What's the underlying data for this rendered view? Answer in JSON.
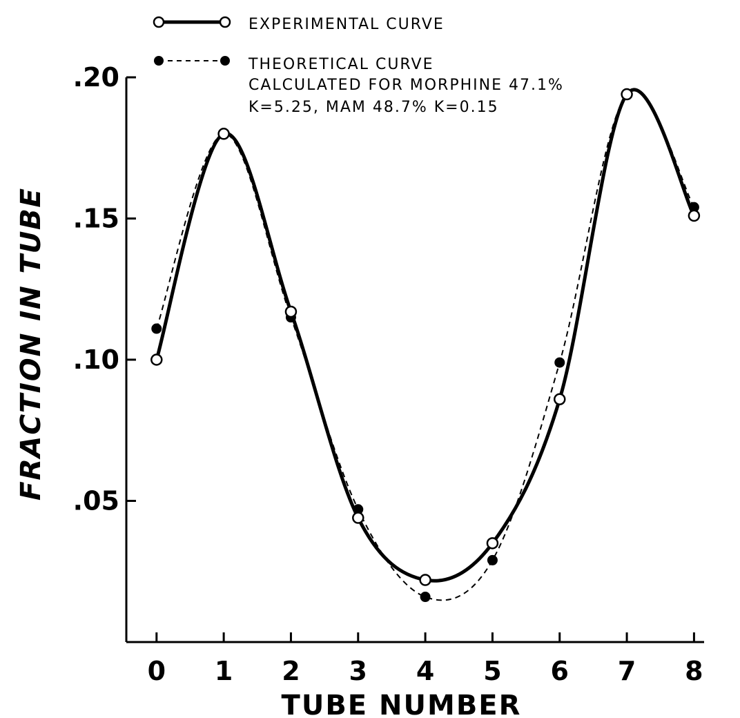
{
  "chart_data": {
    "type": "line",
    "xlabel": "TUBE NUMBER",
    "ylabel": "FRACTION IN TUBE",
    "x": [
      0,
      1,
      2,
      3,
      4,
      5,
      6,
      7,
      8
    ],
    "xlim": [
      -0.45,
      8.15
    ],
    "ylim": [
      0,
      0.2
    ],
    "x_ticks": [
      "0",
      "1",
      "2",
      "3",
      "4",
      "5",
      "6",
      "7",
      "8"
    ],
    "y_ticks": [
      {
        "value": 0.05,
        "label": ".05"
      },
      {
        "value": 0.1,
        "label": ".10"
      },
      {
        "value": 0.15,
        "label": ".15"
      },
      {
        "value": 0.2,
        "label": ".20"
      }
    ],
    "grid": false,
    "legend_position": "top",
    "series": [
      {
        "name": "EXPERIMENTAL CURVE",
        "marker": "open-circle",
        "line_style": "solid",
        "values": [
          0.1,
          0.18,
          0.117,
          0.044,
          0.022,
          0.035,
          0.086,
          0.194,
          0.151
        ]
      },
      {
        "name": "THEORETICAL CURVE",
        "marker": "filled-circle",
        "line_style": "dashed",
        "values": [
          0.111,
          0.18,
          0.115,
          0.047,
          0.016,
          0.029,
          0.099,
          0.194,
          0.154
        ]
      }
    ],
    "annotations": [
      "CALCULATED FOR MORPHINE 47.1%",
      "K=5.25, MAM 48.7% K=0.15"
    ]
  }
}
